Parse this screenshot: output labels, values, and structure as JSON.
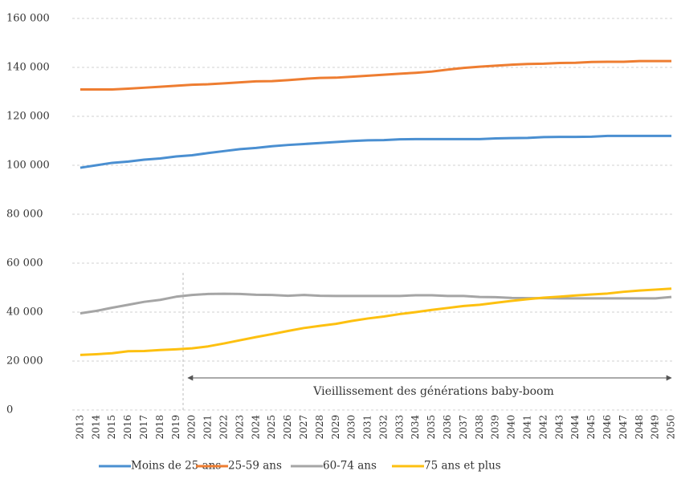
{
  "chart_data": {
    "type": "line",
    "categories": [
      "2013",
      "2014",
      "2015",
      "2016",
      "2017",
      "2018",
      "2019",
      "2020",
      "2021",
      "2022",
      "2023",
      "2024",
      "2025",
      "2026",
      "2027",
      "2028",
      "2029",
      "2030",
      "2031",
      "2032",
      "2033",
      "2034",
      "2035",
      "2036",
      "2037",
      "2038",
      "2039",
      "2040",
      "2041",
      "2042",
      "2043",
      "2044",
      "2045",
      "2046",
      "2047",
      "2048",
      "2049",
      "2050"
    ],
    "series": [
      {
        "name": "Moins de 25 ans",
        "color": "#4a8fd1",
        "values": [
          99000,
          100000,
          101000,
          101500,
          102300,
          102800,
          103600,
          104100,
          105000,
          105800,
          106600,
          107100,
          107800,
          108300,
          108700,
          109100,
          109500,
          109900,
          110200,
          110300,
          110600,
          110700,
          110700,
          110700,
          110700,
          110700,
          111000,
          111100,
          111200,
          111500,
          111600,
          111600,
          111700,
          112000,
          112000,
          112000,
          112000,
          112000
        ]
      },
      {
        "name": "25-59 ans",
        "color": "#ee7d31",
        "values": [
          131000,
          131000,
          131000,
          131300,
          131700,
          132100,
          132500,
          132900,
          133100,
          133500,
          133900,
          134300,
          134400,
          134800,
          135300,
          135700,
          135800,
          136200,
          136600,
          137000,
          137400,
          137800,
          138300,
          139100,
          139800,
          140300,
          140700,
          141100,
          141400,
          141500,
          141800,
          141900,
          142200,
          142300,
          142300,
          142600,
          142600,
          142600
        ]
      },
      {
        "name": "60-74 ans",
        "color": "#a5a5a5",
        "values": [
          39500,
          40500,
          41800,
          43000,
          44200,
          45000,
          46300,
          47000,
          47400,
          47500,
          47400,
          47100,
          47000,
          46700,
          47000,
          46700,
          46600,
          46600,
          46600,
          46600,
          46600,
          46900,
          46900,
          46600,
          46600,
          46200,
          46100,
          45800,
          45700,
          45700,
          45600,
          45600,
          45600,
          45600,
          45600,
          45600,
          45600,
          46200
        ]
      },
      {
        "name": "75 ans et plus",
        "color": "#fdc010",
        "values": [
          22500,
          22800,
          23200,
          24000,
          24100,
          24500,
          24800,
          25200,
          26000,
          27200,
          28500,
          29800,
          31000,
          32300,
          33500,
          34400,
          35200,
          36400,
          37400,
          38200,
          39200,
          40000,
          40900,
          41700,
          42500,
          43000,
          43800,
          44600,
          45300,
          45900,
          46300,
          46800,
          47200,
          47600,
          48300,
          48800,
          49200,
          49600
        ]
      }
    ],
    "ylim": [
      0,
      160000
    ],
    "yticks": [
      0,
      {
        "value": 20000,
        "label": "20 000"
      },
      {
        "value": 40000,
        "label": "40 000"
      },
      {
        "value": 60000,
        "label": "60 000"
      },
      {
        "value": 80000,
        "label": "80 000"
      },
      {
        "value": 100000,
        "label": "100 000"
      },
      {
        "value": 120000,
        "label": "120 000"
      },
      {
        "value": 140000,
        "label": "140 000"
      },
      {
        "value": 160000,
        "label": "160 000"
      }
    ],
    "grid": true,
    "annotation": "Vieillissement des générations baby-boom"
  }
}
